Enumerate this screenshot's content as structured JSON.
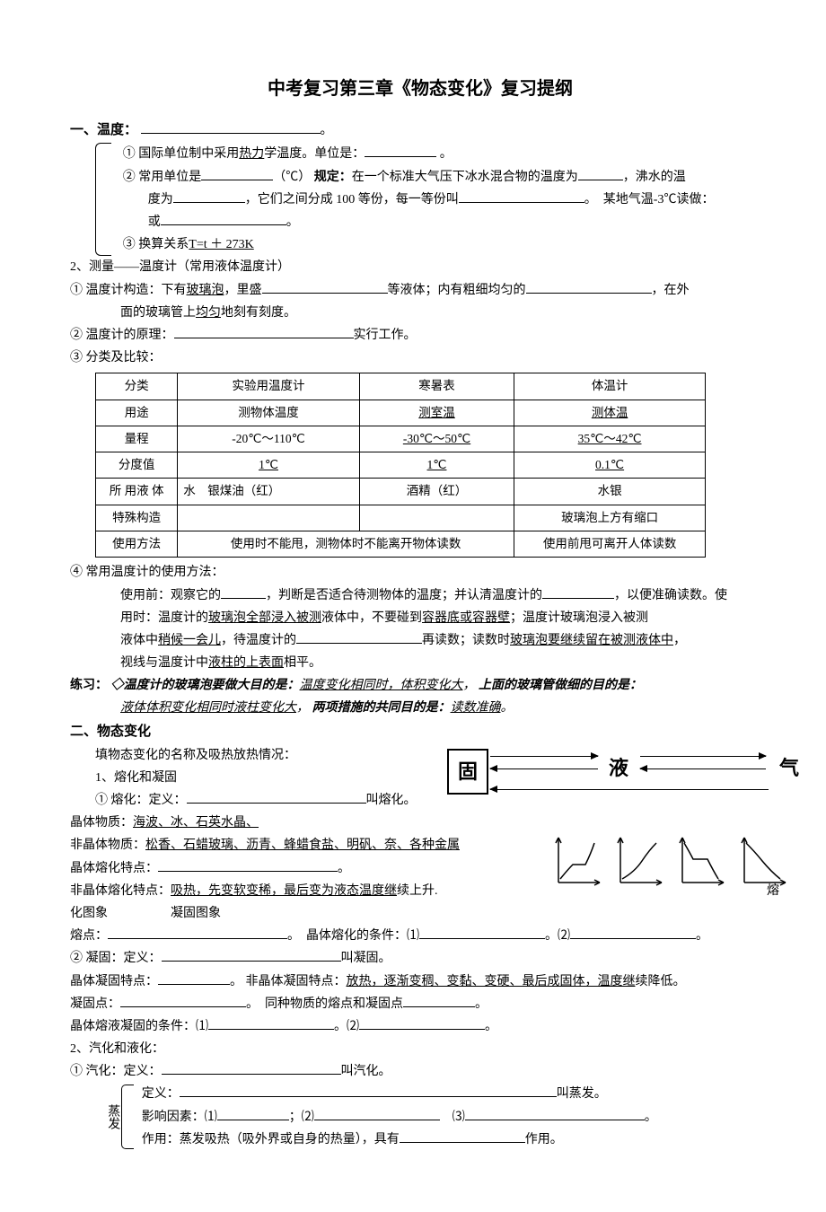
{
  "title": "中考复习第三章《物态变化》复习提纲",
  "s1": {
    "head": "一、温度：",
    "i1": "① 国际单位制中采用",
    "i1u": "热力",
    "i1b": "学温度。单位是：",
    "i1c": " 。",
    "i2a": "② 常用单位是",
    "i2b": "（℃）",
    "i2rule": "规定：",
    "i2c": "在一个标准大气压下冰水混合物的温度为",
    "i2d": "，沸水的温",
    "i2e": "度为",
    "i2f": "，它们之间分成 100 等份，每一等份叫",
    "i2g": "。　某地气温-3℃读做：",
    "i2h": "或",
    "i2i": "。",
    "i3a": "③ 换算关系",
    "i3u": "T=t ＋ 273K"
  },
  "s2": {
    "head": "2、测量——温度计（常用液体温度计）",
    "l1a": "① 温度计构造：下有",
    "l1u": "玻璃泡",
    "l1b": "，里盛",
    "l1c": "等液体；内有粗细均匀的",
    "l1d": "，在外",
    "l1e": "面的玻璃管上",
    "l1eu": "均匀",
    "l1f": "地刻有刻度。",
    "l2a": "② 温度计的原理：",
    "l2b": "实行工作。",
    "l3": "③ 分类及比较："
  },
  "table": {
    "columns": [
      "分类",
      "实验用温度计",
      "寒暑表",
      "体温计"
    ],
    "rows": [
      [
        "用途",
        "测物体温度",
        "测室温",
        "测体温"
      ],
      [
        "量程",
        "-20℃～110℃",
        "-30℃～50℃",
        "35℃～42℃"
      ],
      [
        "分度值",
        "1℃",
        "1℃",
        "0.1℃"
      ],
      [
        "所 用液 体",
        "水　银煤油（红）",
        "酒精（红）",
        "水银"
      ],
      [
        "特殊构造",
        "",
        "",
        "玻璃泡上方有缩口"
      ],
      [
        "使用方法",
        "使用时不能甩，测物体时不能离开物体读数",
        "",
        "使用前甩可离开人体读数"
      ]
    ],
    "underline_cells": [
      [
        0,
        2
      ],
      [
        0,
        3
      ],
      [
        1,
        2
      ],
      [
        1,
        3
      ],
      [
        2,
        1
      ],
      [
        2,
        2
      ],
      [
        2,
        3
      ]
    ],
    "col_widths": [
      "90px",
      "190px",
      "170px",
      "210px"
    ]
  },
  "s3": {
    "l4": "④ 常用温度计的使用方法：",
    "l4a": "使用前：观察它的",
    "l4b": "，判断是否适合待测物体的温度；并认清温度计的",
    "l4c": "，以便准确读数。使",
    "l4d": "用时：温度计的",
    "l4du": "玻璃泡全部浸入被测",
    "l4e": "液体中，不要碰到",
    "l4eu": "容器底或容器壁",
    "l4f": "；温度计玻璃泡浸入被测",
    "l4g": "液体中",
    "l4gu": "稍候一会儿",
    "l4h": "，待温度计的",
    "l4i": "再读数；读数时",
    "l4iu": "玻璃泡要继续留在被测液体中",
    "l4j": "，",
    "l4k": "视线与温度计中",
    "l4ku": "液柱的上表面",
    "l4l": "相平。"
  },
  "practice": {
    "head": "练习：",
    "t1": "◇温度计的玻璃泡要做大目的是：",
    "t1u": "温度变化相同时，体积变化大",
    "t1b": "，",
    "t2": "上面的玻璃管做细的目的是：",
    "t2u": "液体体积变化相同时液柱变化大",
    "t2b": "，",
    "t3": "两项措施的共同目的是：",
    "t3u": "读数准确",
    "t3c": "。"
  },
  "s4": {
    "head": "二、物态变化",
    "l1": "填物态变化的名称及吸热放热情况：",
    "phase": {
      "solid": "固",
      "liquid": "液",
      "gas": "气"
    },
    "l2": "1、熔化和凝固",
    "l3a": "① 熔化：定义：",
    "l3b": "叫熔化。",
    "l4a": "晶体物质：",
    "l4u": "海波、冰、石英水晶、",
    "l5a": "非晶体物质：",
    "l5u": "松香、石蜡玻璃、沥青、蜂蜡食盐、明矾、奈、各种金属",
    "l6a": "晶体熔化特点：",
    "l6b": "。",
    "l7a": "非晶体熔化特点：",
    "l7u": "吸热，先变软变稀，最后变为液态温度继",
    "l7b": "续上升.",
    "l7c": "熔",
    "l8": "化图象　　　　　凝固图象",
    "l9a": "熔点：",
    "l9b": "。　晶体熔化的条件：⑴",
    "l9c": "。⑵",
    "l9d": "。",
    "l10a": "② 凝固：定义：",
    "l10b": "叫凝固。",
    "l11a": "晶体凝固特点：",
    "l11b": "。 非晶体凝固特点：",
    "l11u": "放热，逐渐变稠、变黏、变硬、最后成固体，温度继",
    "l11c": "续降低。",
    "l12a": "凝固点：",
    "l12b": "。　同种物质的熔点和凝固点",
    "l12c": "。",
    "l13a": "晶体熔液凝固的条件：⑴",
    "l13b": "。⑵",
    "l13c": "。",
    "l14": "2、汽化和液化：",
    "l15a": "① 汽化：定义：",
    "l15b": "叫汽化。",
    "evap": {
      "label": "蒸发",
      "d1a": "定义：",
      "d1b": "叫蒸发。",
      "d2a": "影响因素：⑴",
      "d2b": "；⑵",
      "d2c": "　⑶",
      "d2d": "。",
      "d3a": "作用：蒸发吸热（吸外界或自身的热量），具有",
      "d3b": "作用。"
    }
  },
  "graphs": {
    "stroke": "#000000",
    "stroke_width": 1.5,
    "width": 55,
    "height": 60
  }
}
